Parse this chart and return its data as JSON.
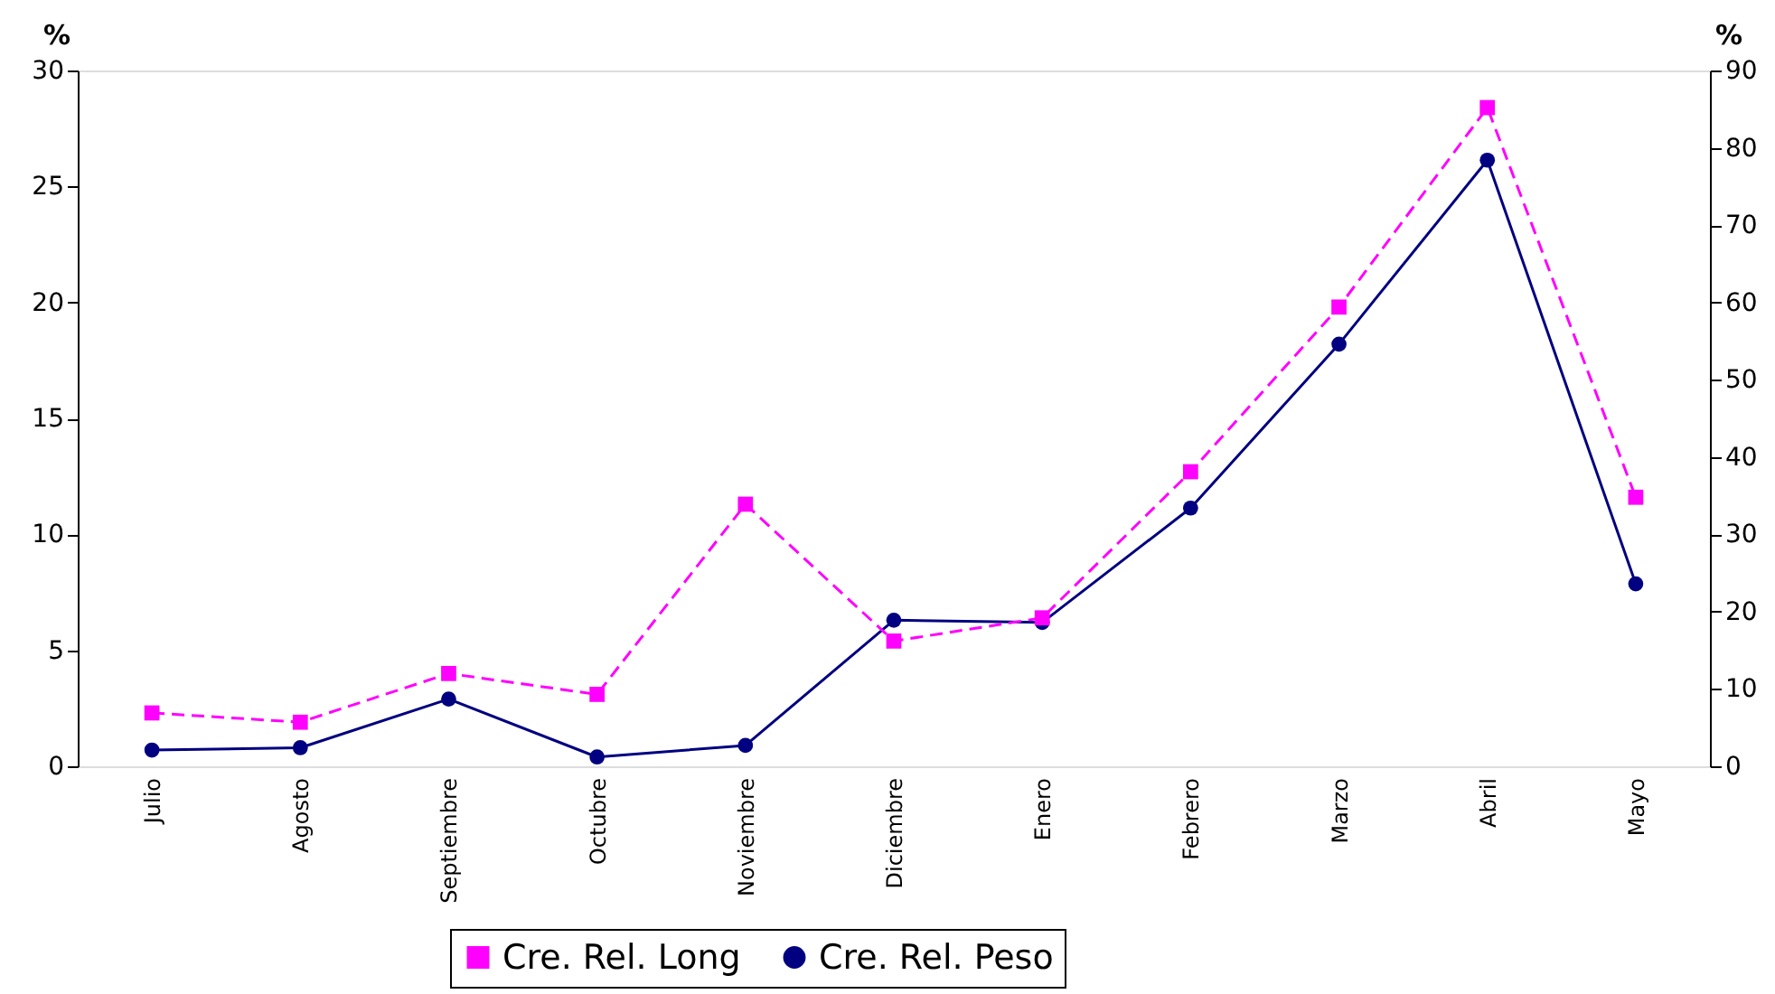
{
  "chart_data": {
    "type": "line",
    "ylabel": "%",
    "y2label": "%",
    "categories": [
      "Julio",
      "Agosto",
      "Septiembre",
      "Octubre",
      "Noviembre",
      "Diciembre",
      "Enero",
      "Febrero",
      "Marzo",
      "Abril",
      "Mayo"
    ],
    "series": [
      {
        "name": "Cre. Rel. Long",
        "color": "#ff00ff",
        "marker": "square",
        "line_style": "dashed",
        "values": [
          2.3,
          1.9,
          4.0,
          3.1,
          11.3,
          5.4,
          6.4,
          12.7,
          19.8,
          28.4,
          11.6
        ]
      },
      {
        "name": "Cre. Rel. Peso",
        "color": "#000080",
        "marker": "circle",
        "line_style": "solid",
        "axis": "y2",
        "values": [
          2.1,
          2.4,
          8.7,
          1.2,
          2.7,
          18.9,
          18.6,
          33.4,
          54.6,
          78.4,
          23.6
        ]
      }
    ],
    "ylim": [
      0,
      30
    ],
    "yticks": [
      0,
      5,
      10,
      15,
      20,
      25,
      30
    ],
    "y2lim": [
      0,
      90
    ],
    "y2ticks": [
      0,
      10,
      20,
      30,
      40,
      50,
      60,
      70,
      80,
      90
    ],
    "grid": false,
    "legend": "bottom"
  }
}
